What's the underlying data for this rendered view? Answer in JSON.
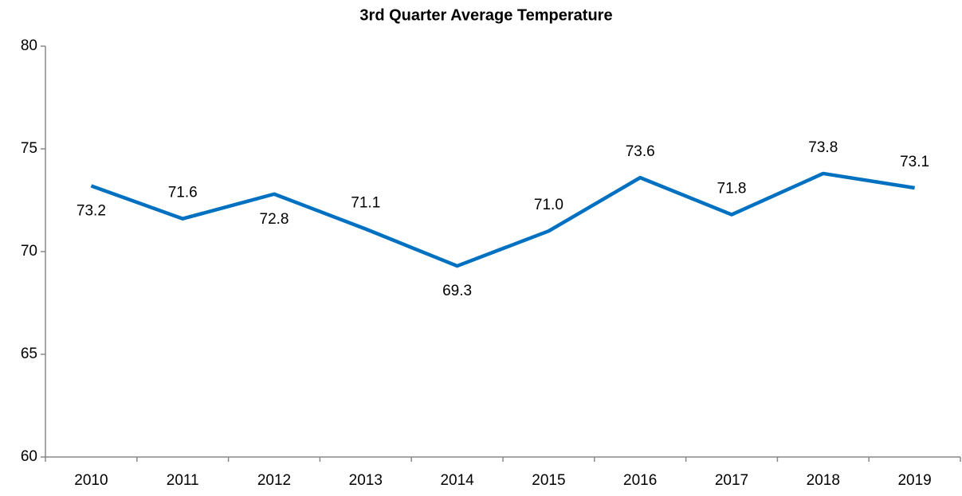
{
  "chart_data": {
    "type": "line",
    "title": "3rd Quarter Average Temperature",
    "categories": [
      "2010",
      "2011",
      "2012",
      "2013",
      "2014",
      "2015",
      "2016",
      "2017",
      "2018",
      "2019"
    ],
    "values": [
      73.2,
      71.6,
      72.8,
      71.1,
      69.3,
      71.0,
      73.6,
      71.8,
      73.8,
      73.1
    ],
    "value_labels": [
      "73.2",
      "71.6",
      "72.8",
      "71.1",
      "69.3",
      "71.0",
      "73.6",
      "71.8",
      "73.8",
      "73.1"
    ],
    "color": "#0070c0",
    "ylim": [
      60,
      80
    ],
    "yticks": [
      60,
      65,
      70,
      75,
      80
    ],
    "grid": false
  }
}
